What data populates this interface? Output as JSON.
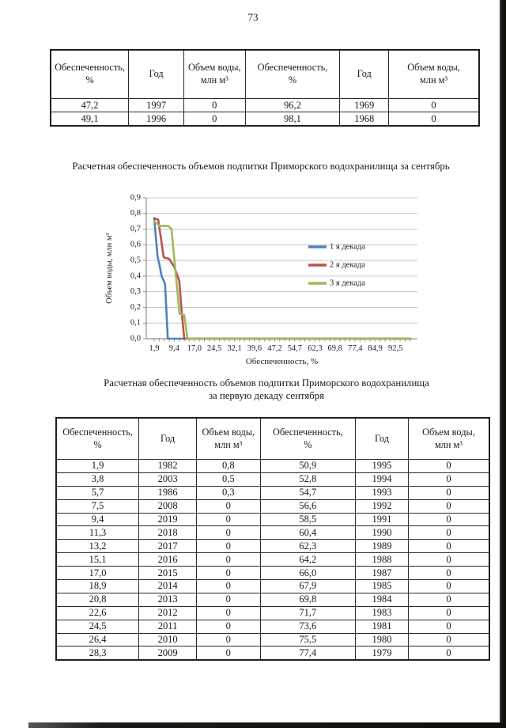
{
  "page_number": "73",
  "top_table": {
    "headers": [
      [
        "Обеспеченность,",
        "%"
      ],
      [
        "Год"
      ],
      [
        "Объем воды,",
        "млн м³"
      ],
      [
        "Обеспеченность,",
        "%"
      ],
      [
        "Год"
      ],
      [
        "Объем воды,",
        "млн м³"
      ]
    ],
    "rows": [
      [
        "47,2",
        "1997",
        "0",
        "96,2",
        "1969",
        "0"
      ],
      [
        "49,1",
        "1996",
        "0",
        "98,1",
        "1968",
        "0"
      ]
    ]
  },
  "chart_title": "Расчетная обеспеченность объемов подпитки Приморского водохранилища за сентябрь",
  "chart_data": {
    "type": "line",
    "title": "Расчетная обеспеченность объемов подпитки Приморского водохранилища за сентябрь",
    "xlabel": "Обеспеченность, %",
    "ylabel": "Объем воды, млн м³",
    "xlim": [
      1.9,
      98.1
    ],
    "ylim": [
      0,
      0.9
    ],
    "grid": true,
    "legend_position": "inside-right",
    "minor_xtick_step": 1.885,
    "xticks": {
      "values": [
        1.9,
        9.4,
        17.0,
        24.5,
        32.1,
        39.6,
        47.2,
        54.7,
        62.3,
        69.8,
        77.4,
        84.9,
        92.5
      ],
      "labels": [
        "1,9",
        "9,4",
        "17,0",
        "24,5",
        "32,1",
        "39,6",
        "47,2",
        "54,7",
        "62,3",
        "69,8",
        "77,4",
        "84,9",
        "92,5"
      ]
    },
    "yticks": {
      "values": [
        0,
        0.1,
        0.2,
        0.3,
        0.4,
        0.5,
        0.6,
        0.7,
        0.8,
        0.9
      ],
      "labels": [
        "0,0",
        "0,1",
        "0,2",
        "0,3",
        "0,4",
        "0,5",
        "0,6",
        "0,7",
        "0,8",
        "0,9"
      ]
    },
    "series": [
      {
        "name": "1 я декада",
        "color": "#4F81BD",
        "points": [
          [
            1.9,
            0.77
          ],
          [
            3.2,
            0.52
          ],
          [
            3.8,
            0.48
          ],
          [
            4.7,
            0.4
          ],
          [
            6.0,
            0.35
          ],
          [
            7.0,
            0.0
          ],
          [
            98.1,
            0.0
          ]
        ]
      },
      {
        "name": "2 я декада",
        "color": "#C0504D",
        "points": [
          [
            1.9,
            0.77
          ],
          [
            3.4,
            0.76
          ],
          [
            5.5,
            0.52
          ],
          [
            7.5,
            0.51
          ],
          [
            9.4,
            0.46
          ],
          [
            11.3,
            0.37
          ],
          [
            12.3,
            0.16
          ],
          [
            13.2,
            0.0
          ],
          [
            98.1,
            0.0
          ]
        ]
      },
      {
        "name": "3 я декада",
        "color": "#9BBB59",
        "points": [
          [
            1.9,
            0.75
          ],
          [
            4.0,
            0.72
          ],
          [
            7.2,
            0.72
          ],
          [
            8.4,
            0.7
          ],
          [
            11.4,
            0.16
          ],
          [
            13.2,
            0.15
          ],
          [
            14.4,
            0.0
          ],
          [
            98.1,
            0.0
          ]
        ]
      }
    ]
  },
  "bottom_table": {
    "title_lines": [
      "Расчетная обеспеченность объемов подпитки Приморского водохранилища",
      "за первую декаду сентября"
    ],
    "headers": [
      [
        "Обеспеченность,",
        "%"
      ],
      [
        "Год"
      ],
      [
        "Объем воды,",
        "млн м³"
      ],
      [
        "Обеспеченность,",
        "%"
      ],
      [
        "Год"
      ],
      [
        "Объем воды,",
        "млн м³"
      ]
    ],
    "rows": [
      [
        "1,9",
        "1982",
        "0,8",
        "50,9",
        "1995",
        "0"
      ],
      [
        "3,8",
        "2003",
        "0,5",
        "52,8",
        "1994",
        "0"
      ],
      [
        "5,7",
        "1986",
        "0,3",
        "54,7",
        "1993",
        "0"
      ],
      [
        "7,5",
        "2008",
        "0",
        "56,6",
        "1992",
        "0"
      ],
      [
        "9,4",
        "2019",
        "0",
        "58,5",
        "1991",
        "0"
      ],
      [
        "11,3",
        "2018",
        "0",
        "60,4",
        "1990",
        "0"
      ],
      [
        "13,2",
        "2017",
        "0",
        "62,3",
        "1989",
        "0"
      ],
      [
        "15,1",
        "2016",
        "0",
        "64,2",
        "1988",
        "0"
      ],
      [
        "17,0",
        "2015",
        "0",
        "66,0",
        "1987",
        "0"
      ],
      [
        "18,9",
        "2014",
        "0",
        "67,9",
        "1985",
        "0"
      ],
      [
        "20,8",
        "2013",
        "0",
        "69,8",
        "1984",
        "0"
      ],
      [
        "22,6",
        "2012",
        "0",
        "71,7",
        "1983",
        "0"
      ],
      [
        "24,5",
        "2011",
        "0",
        "73,6",
        "1981",
        "0"
      ],
      [
        "26,4",
        "2010",
        "0",
        "75,5",
        "1980",
        "0"
      ],
      [
        "28,3",
        "2009",
        "0",
        "77,4",
        "1979",
        "0"
      ]
    ]
  }
}
